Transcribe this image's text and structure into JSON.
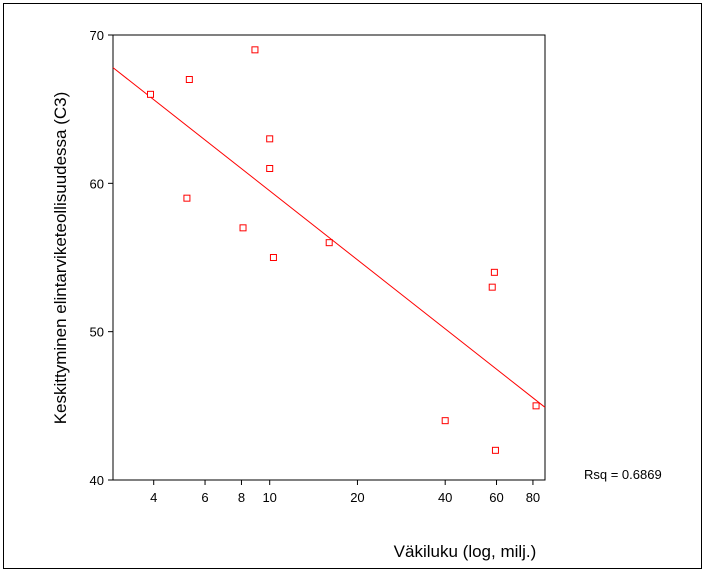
{
  "chart_data": {
    "type": "scatter",
    "xlabel": "Väkiluku (log, milj.)",
    "ylabel": "Keskittyminen elintarviketeollisuudessa (C3)",
    "x_scale": "log",
    "xlim": [
      2.9,
      88
    ],
    "ylim": [
      40,
      70
    ],
    "x_ticks": [
      4,
      6,
      8,
      10,
      20,
      40,
      60,
      80
    ],
    "x_tick_labels": [
      "4",
      "6",
      "8",
      "10",
      "20",
      "40",
      "60",
      "80"
    ],
    "y_ticks": [
      40,
      50,
      60,
      70
    ],
    "y_tick_labels": [
      "40",
      "50",
      "60",
      "70"
    ],
    "grid": false,
    "marker": "square",
    "color": "#ff0000",
    "points": [
      {
        "x": 3.9,
        "y": 66
      },
      {
        "x": 5.2,
        "y": 59
      },
      {
        "x": 5.3,
        "y": 67
      },
      {
        "x": 8.1,
        "y": 57
      },
      {
        "x": 8.9,
        "y": 69
      },
      {
        "x": 10.0,
        "y": 63
      },
      {
        "x": 10.0,
        "y": 61
      },
      {
        "x": 10.3,
        "y": 55
      },
      {
        "x": 16.0,
        "y": 56
      },
      {
        "x": 40.0,
        "y": 44
      },
      {
        "x": 58.0,
        "y": 53
      },
      {
        "x": 59.0,
        "y": 54
      },
      {
        "x": 59.5,
        "y": 42
      },
      {
        "x": 82.0,
        "y": 45
      }
    ],
    "fit_line": {
      "x": [
        2.9,
        88
      ],
      "y": [
        67.8,
        44.9
      ]
    },
    "annotation": "Rsq = 0.6869"
  }
}
